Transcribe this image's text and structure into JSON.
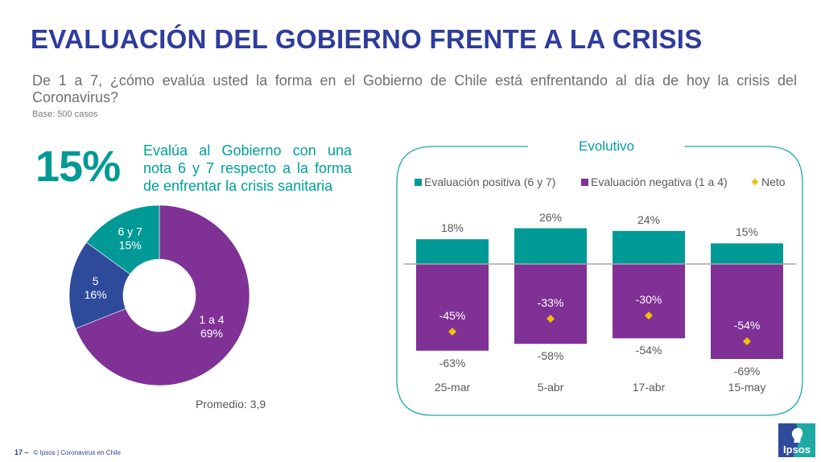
{
  "header": {
    "title": "EVALUACIÓN DEL GOBIERNO FRENTE A LA CRISIS",
    "question": "De 1 a 7, ¿cómo evalúa usted la forma en el Gobierno de Chile está enfrentando al día de hoy la crisis del Coronavirus?",
    "base": "Base: 500 casos"
  },
  "highlight": {
    "value": "15%",
    "text": "Evalúa al Gobierno con una nota 6 y 7 respecto a la forma de enfrentar la crisis sanitaria"
  },
  "colors": {
    "title": "#2E3C9C",
    "teal": "#009A96",
    "purple": "#7F3196",
    "blue": "#2E4A9B",
    "neto": "#F2C200",
    "gray_text": "#595959"
  },
  "footer": {
    "page": "17",
    "dash": "–",
    "text": "© Ipsos | Coronavirus en Chile"
  },
  "logo": {
    "text": "Ipsos"
  },
  "chart_data": [
    {
      "type": "pie",
      "variant": "donut",
      "title": "",
      "slices": [
        {
          "label": "1 a 4",
          "value": 69,
          "display": "69%",
          "color": "#7F3196"
        },
        {
          "label": "5",
          "value": 16,
          "display": "16%",
          "color": "#2E4A9B"
        },
        {
          "label": "6 y 7",
          "value": 15,
          "display": "15%",
          "color": "#009A96"
        }
      ],
      "annotation": "Promedio: 3,9"
    },
    {
      "type": "bar",
      "stacked": "diverging",
      "title": "Evolutivo",
      "categories": [
        "25-mar",
        "5-abr",
        "17-abr",
        "15-may"
      ],
      "series": [
        {
          "name": "Evaluación positiva (6 y 7)",
          "values": [
            18,
            26,
            24,
            15
          ],
          "color": "#009A96"
        },
        {
          "name": "Evaluación negativa (1 a 4)",
          "values": [
            -63,
            -58,
            -54,
            -69
          ],
          "color": "#7F3196"
        },
        {
          "name": "Neto",
          "values": [
            -45,
            -33,
            -30,
            -54
          ],
          "color": "#F2C200",
          "marker": "diamond"
        }
      ],
      "ylim": [
        -70,
        30
      ],
      "legend": "top",
      "grid": false,
      "xlabel": "",
      "ylabel": ""
    }
  ]
}
